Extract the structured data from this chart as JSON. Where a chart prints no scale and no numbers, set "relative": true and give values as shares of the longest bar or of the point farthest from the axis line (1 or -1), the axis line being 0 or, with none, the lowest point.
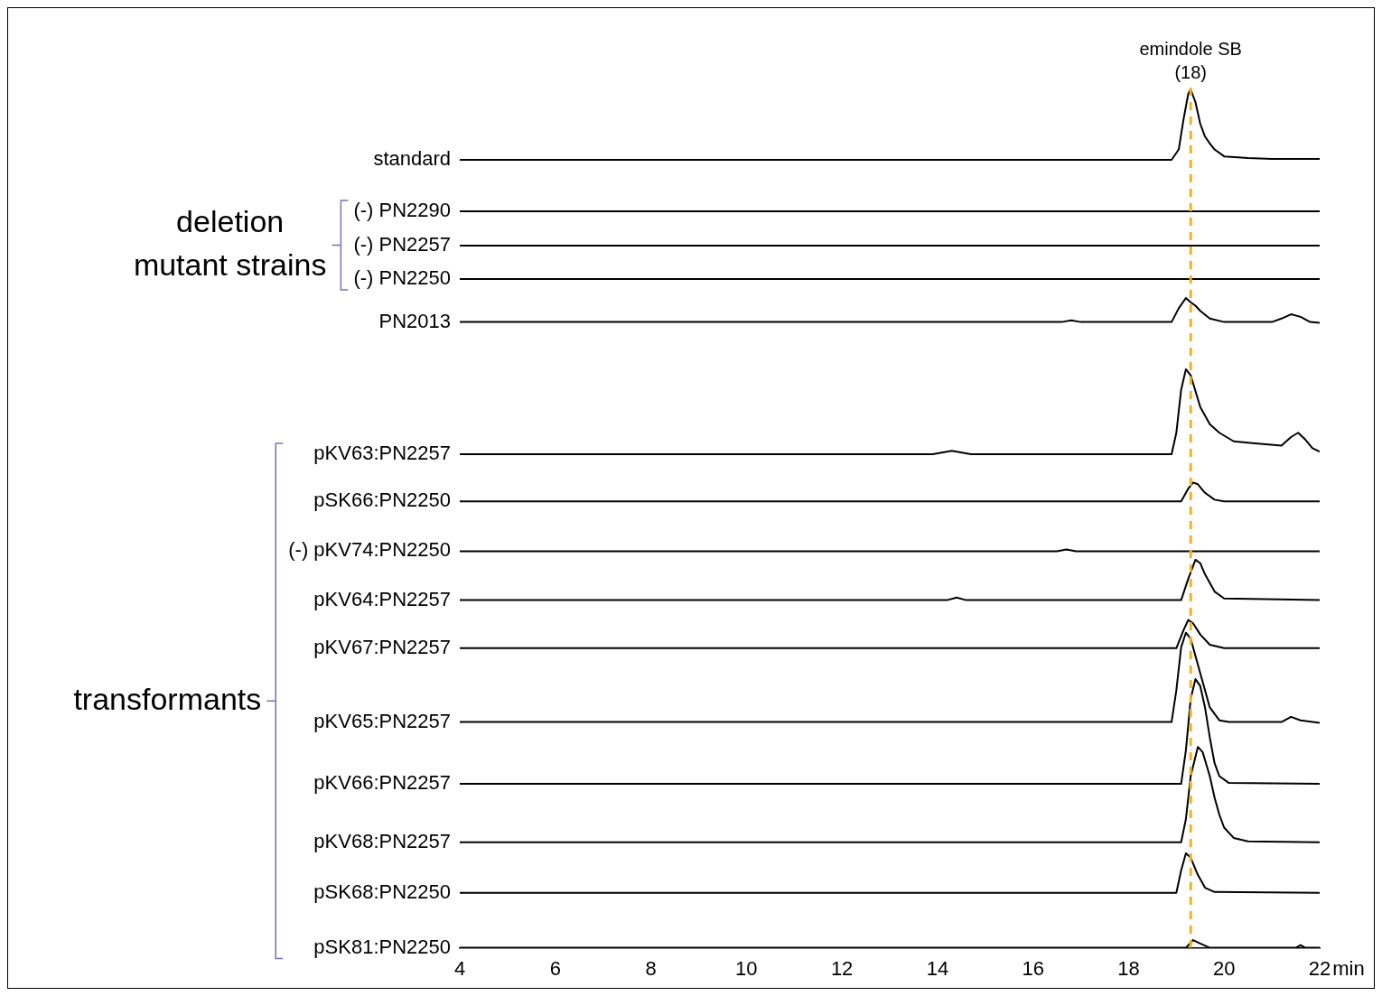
{
  "chart_data": {
    "type": "line",
    "relative": true,
    "xlabel": "min",
    "xlim": [
      4,
      22
    ],
    "xticks": [
      4,
      6,
      8,
      10,
      12,
      14,
      16,
      18,
      20,
      22
    ],
    "grid": false,
    "legend": false,
    "marker": "none",
    "line_style": "solid",
    "annotations": [
      "deletion mutant strains",
      "transformants"
    ],
    "ref_lines": [
      {
        "axis": "x",
        "value": 19.3,
        "label": "emindole SB (18)",
        "color": "#f0b323",
        "line_style": "dashed"
      }
    ],
    "series": [
      {
        "name": "standard",
        "color": "#000000",
        "x": [
          4,
          18.9,
          19.05,
          19.15,
          19.25,
          19.3,
          19.4,
          19.5,
          19.6,
          19.7,
          19.8,
          20,
          20.5,
          21,
          22
        ],
        "values": [
          0.918,
          0.918,
          0.93,
          0.965,
          0.995,
          1.0,
          0.985,
          0.96,
          0.945,
          0.937,
          0.93,
          0.922,
          0.92,
          0.919,
          0.919
        ]
      },
      {
        "name": "(-) PN2290",
        "color": "#000000",
        "x": [
          4,
          22
        ],
        "values": [
          0.858,
          0.858
        ]
      },
      {
        "name": "(-) PN2257",
        "color": "#000000",
        "x": [
          4,
          22
        ],
        "values": [
          0.818,
          0.818
        ]
      },
      {
        "name": "(-) PN2250",
        "color": "#000000",
        "x": [
          4,
          22
        ],
        "values": [
          0.779,
          0.779
        ]
      },
      {
        "name": "PN2013",
        "color": "#000000",
        "x": [
          4,
          16.6,
          16.8,
          17,
          18.9,
          19.05,
          19.2,
          19.3,
          19.4,
          19.5,
          19.7,
          20,
          21,
          21.2,
          21.4,
          21.6,
          21.8,
          22
        ],
        "values": [
          0.729,
          0.729,
          0.731,
          0.729,
          0.729,
          0.745,
          0.757,
          0.752,
          0.748,
          0.742,
          0.733,
          0.729,
          0.729,
          0.733,
          0.738,
          0.735,
          0.729,
          0.728
        ]
      },
      {
        "name": "pKV63:PN2257",
        "color": "#000000",
        "x": [
          4,
          13.9,
          14.3,
          14.7,
          18.9,
          19.0,
          19.1,
          19.2,
          19.3,
          19.5,
          19.7,
          19.9,
          20.2,
          20.6,
          21.2,
          21.4,
          21.55,
          21.7,
          21.85,
          22
        ],
        "values": [
          0.575,
          0.575,
          0.579,
          0.575,
          0.575,
          0.6,
          0.65,
          0.674,
          0.667,
          0.63,
          0.61,
          0.6,
          0.59,
          0.588,
          0.585,
          0.595,
          0.6,
          0.592,
          0.582,
          0.578
        ]
      },
      {
        "name": "pSK66:PN2250",
        "color": "#000000",
        "x": [
          4,
          19.1,
          19.25,
          19.35,
          19.45,
          19.6,
          19.8,
          20,
          22
        ],
        "values": [
          0.52,
          0.52,
          0.535,
          0.542,
          0.54,
          0.53,
          0.522,
          0.52,
          0.52
        ]
      },
      {
        "name": "(-) pKV74:PN2250",
        "color": "#000000",
        "x": [
          4,
          16.5,
          16.7,
          16.9,
          22
        ],
        "values": [
          0.462,
          0.462,
          0.464,
          0.462,
          0.462
        ]
      },
      {
        "name": "pKV64:PN2257",
        "color": "#000000",
        "x": [
          4,
          14.2,
          14.4,
          14.6,
          19.1,
          19.25,
          19.4,
          19.5,
          19.6,
          19.8,
          20,
          22
        ],
        "values": [
          0.405,
          0.405,
          0.408,
          0.405,
          0.405,
          0.43,
          0.452,
          0.448,
          0.435,
          0.415,
          0.407,
          0.405
        ]
      },
      {
        "name": "pKV67:PN2257",
        "color": "#000000",
        "x": [
          4,
          19.0,
          19.15,
          19.25,
          19.35,
          19.5,
          19.7,
          20,
          22
        ],
        "values": [
          0.349,
          0.349,
          0.37,
          0.382,
          0.378,
          0.365,
          0.353,
          0.349,
          0.349
        ]
      },
      {
        "name": "pKV65:PN2257",
        "color": "#000000",
        "x": [
          4,
          18.9,
          19.0,
          19.1,
          19.2,
          19.3,
          19.5,
          19.7,
          19.9,
          20.1,
          21.2,
          21.4,
          21.6,
          22
        ],
        "values": [
          0.263,
          0.263,
          0.3,
          0.35,
          0.367,
          0.36,
          0.32,
          0.28,
          0.265,
          0.263,
          0.263,
          0.269,
          0.265,
          0.262
        ]
      },
      {
        "name": "pKV66:PN2257",
        "color": "#000000",
        "x": [
          4,
          19.1,
          19.2,
          19.3,
          19.4,
          19.5,
          19.6,
          19.7,
          19.8,
          19.9,
          20.1,
          22
        ],
        "values": [
          0.191,
          0.191,
          0.23,
          0.29,
          0.313,
          0.305,
          0.28,
          0.245,
          0.215,
          0.2,
          0.192,
          0.191
        ]
      },
      {
        "name": "pKV68:PN2257",
        "color": "#000000",
        "x": [
          4,
          19.1,
          19.2,
          19.3,
          19.45,
          19.55,
          19.7,
          19.8,
          19.9,
          20,
          20.2,
          20.5,
          22
        ],
        "values": [
          0.123,
          0.123,
          0.15,
          0.2,
          0.234,
          0.228,
          0.2,
          0.175,
          0.155,
          0.14,
          0.128,
          0.124,
          0.123
        ]
      },
      {
        "name": "pSK68:PN2250",
        "color": "#000000",
        "x": [
          4,
          19.0,
          19.1,
          19.2,
          19.3,
          19.45,
          19.6,
          19.8,
          22
        ],
        "values": [
          0.064,
          0.064,
          0.09,
          0.11,
          0.105,
          0.085,
          0.07,
          0.065,
          0.064
        ]
      },
      {
        "name": "pSK81:PN2250",
        "color": "#000000",
        "x": [
          4,
          19.2,
          19.35,
          19.5,
          19.7,
          21.5,
          21.6,
          21.7,
          22
        ],
        "values": [
          0,
          0,
          0.009,
          0.005,
          0,
          0,
          0.003,
          0,
          0
        ]
      }
    ]
  }
}
